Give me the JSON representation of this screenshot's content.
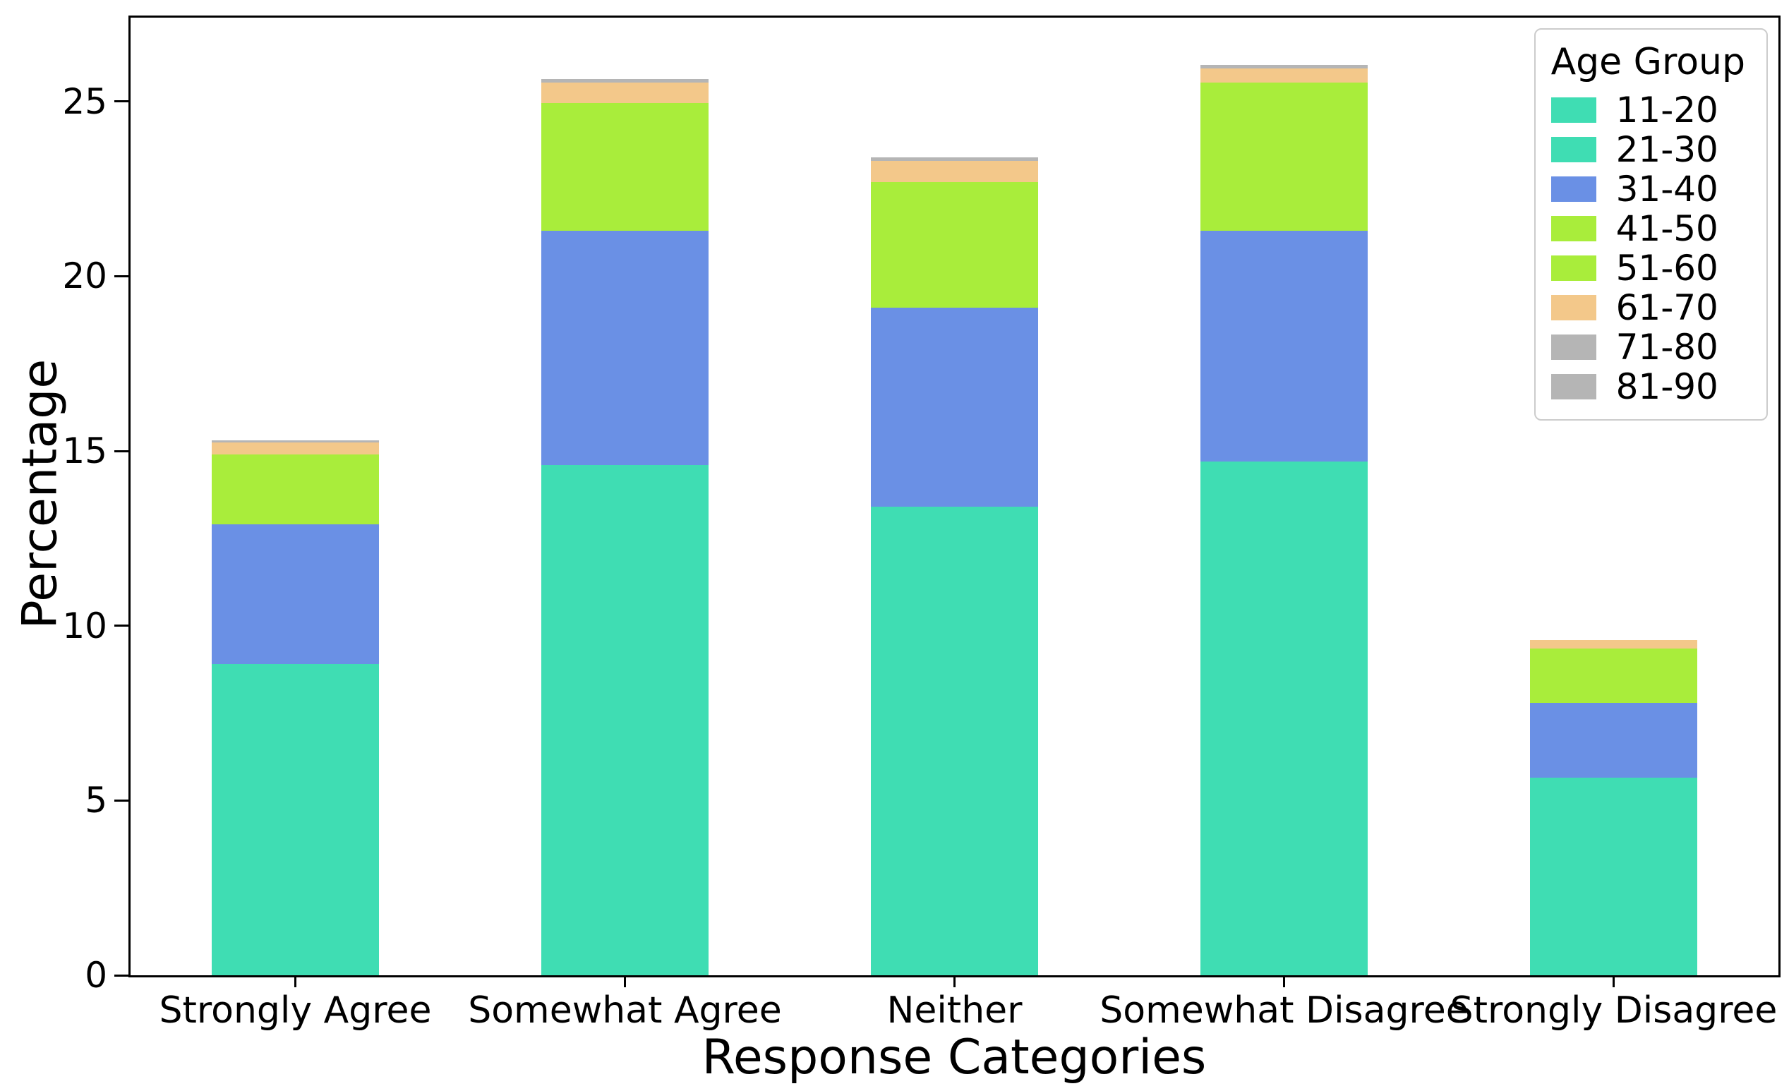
{
  "figure": {
    "background": "#ffffff",
    "spine_color": "#000000",
    "text_color": "#000000"
  },
  "chart_data": {
    "type": "stacked_bar",
    "title": "",
    "xlabel": "Response Categories",
    "ylabel": "Percentage",
    "legend_title": "Age Group",
    "legend_position": "upper right",
    "grid": false,
    "categories": [
      "Strongly Agree",
      "Somewhat Agree",
      "Neither",
      "Somewhat Disagree",
      "Strongly Disagree"
    ],
    "series": [
      {
        "name": "11-20",
        "color": "#3fddb3",
        "values": [
          4.45,
          7.3,
          6.7,
          7.35,
          2.825
        ]
      },
      {
        "name": "21-30",
        "color": "#3fddb3",
        "values": [
          4.45,
          7.3,
          6.7,
          7.35,
          2.825
        ]
      },
      {
        "name": "31-40",
        "color": "#6a90e5",
        "values": [
          4.0,
          6.7,
          5.7,
          6.6,
          2.15
        ]
      },
      {
        "name": "41-50",
        "color": "#a9ed3b",
        "values": [
          1.0,
          1.825,
          1.8,
          2.125,
          0.775
        ]
      },
      {
        "name": "51-60",
        "color": "#a9ed3b",
        "values": [
          1.0,
          1.825,
          1.8,
          2.125,
          0.775
        ]
      },
      {
        "name": "61-70",
        "color": "#f3c88a",
        "values": [
          0.35,
          0.6,
          0.6,
          0.4,
          0.25
        ]
      },
      {
        "name": "71-80",
        "color": "#b5b5b5",
        "values": [
          0.025,
          0.05,
          0.05,
          0.05,
          0.0
        ]
      },
      {
        "name": "81-90",
        "color": "#b5b5b5",
        "values": [
          0.025,
          0.05,
          0.05,
          0.05,
          0.0
        ]
      }
    ],
    "bar_totals": [
      15.3,
      25.65,
      23.4,
      26.05,
      9.6
    ],
    "yticks": [
      0,
      5,
      10,
      15,
      20,
      25
    ],
    "ylim": [
      0,
      27.4
    ]
  }
}
